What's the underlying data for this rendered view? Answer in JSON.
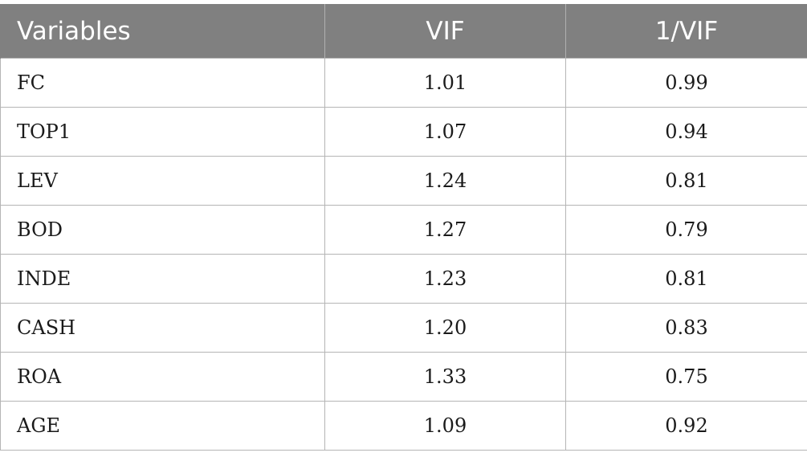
{
  "table": {
    "headers": [
      "Variables",
      "VIF",
      "1/VIF"
    ],
    "rows": [
      [
        "FC",
        "1.01",
        "0.99"
      ],
      [
        "TOP1",
        "1.07",
        "0.94"
      ],
      [
        "LEV",
        "1.24",
        "0.81"
      ],
      [
        "BOD",
        "1.27",
        "0.79"
      ],
      [
        "INDE",
        "1.23",
        "0.81"
      ],
      [
        "CASH",
        "1.20",
        "0.83"
      ],
      [
        "ROA",
        "1.33",
        "0.75"
      ],
      [
        "AGE",
        "1.09",
        "0.92"
      ]
    ]
  },
  "colors": {
    "header_background": "#808080",
    "header_text": "#ffffff",
    "grid_line": "#b5b5b5"
  }
}
